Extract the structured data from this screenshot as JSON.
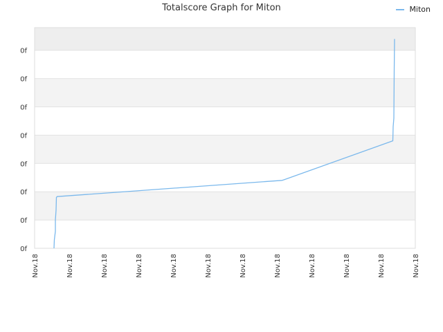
{
  "chart_data": {
    "type": "line",
    "title": "Totalscore Graph for Miton",
    "xlabel": "",
    "ylabel": "",
    "legend_position": "top-right",
    "grid": true,
    "x_tick_labels": [
      "Nov.18",
      "Nov.18",
      "Nov.18",
      "Nov.18",
      "Nov.18",
      "Nov.18",
      "Nov.18",
      "Nov.18",
      "Nov.18",
      "Nov.18",
      "Nov.18",
      "Nov.18"
    ],
    "y_tick_labels": [
      "0f",
      "0f",
      "0f",
      "0f",
      "0f",
      "0f",
      "0f",
      "0f"
    ],
    "xlim": [
      0,
      11
    ],
    "ylim": [
      0,
      7.8
    ],
    "series": [
      {
        "name": "Miton",
        "color": "#7ab8ec",
        "points": [
          [
            0.56,
            0.0
          ],
          [
            0.57,
            0.3
          ],
          [
            0.6,
            0.6
          ],
          [
            0.6,
            1.0
          ],
          [
            0.62,
            1.35
          ],
          [
            0.63,
            1.8
          ],
          [
            0.65,
            1.83
          ],
          [
            7.15,
            2.4
          ],
          [
            7.2,
            2.42
          ],
          [
            10.35,
            3.8
          ],
          [
            10.36,
            4.3
          ],
          [
            10.38,
            4.6
          ],
          [
            10.39,
            6.3
          ],
          [
            10.4,
            7.4
          ]
        ]
      }
    ]
  }
}
